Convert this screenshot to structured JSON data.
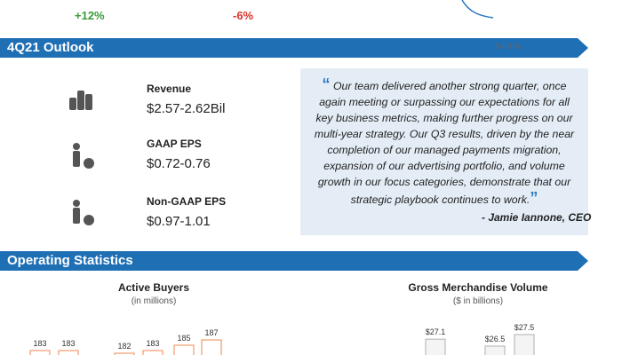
{
  "top": {
    "metric_1_change": "+12%",
    "metric_2_change": "-6%",
    "metric_3_value": "94.0 %"
  },
  "outlook": {
    "title": "4Q21 Outlook",
    "items": [
      {
        "label": "Revenue",
        "value": "$2.57-2.62Bil"
      },
      {
        "label": "GAAP EPS",
        "value": "$0.72-0.76"
      },
      {
        "label": "Non-GAAP EPS",
        "value": "$0.97-1.01"
      }
    ],
    "quote_open": "“",
    "quote": "Our team delivered another strong quarter, once again meeting or surpassing our expectations for all key business metrics, making further progress on our multi-year strategy. Our Q3 results, driven by the near completion of our managed payments migration, expansion of our advertising portfolio, and volume growth in our focus categories, demonstrate that our strategic playbook continues to work.",
    "quote_close": "”",
    "attribution": "- Jamie Iannone, CEO"
  },
  "operating_statistics": {
    "title": "Operating Statistics",
    "charts": [
      {
        "title": "Active Buyers",
        "subtitle": "(in millions)",
        "values": [
          183,
          183,
          182,
          183,
          185,
          187
        ]
      },
      {
        "title": "Gross Merchandise Volume",
        "subtitle": "($ in billions)",
        "values": [
          27.1,
          26.5,
          27.5
        ],
        "value_labels": [
          "$27.1",
          "$26.5",
          "$27.5"
        ]
      }
    ]
  }
}
